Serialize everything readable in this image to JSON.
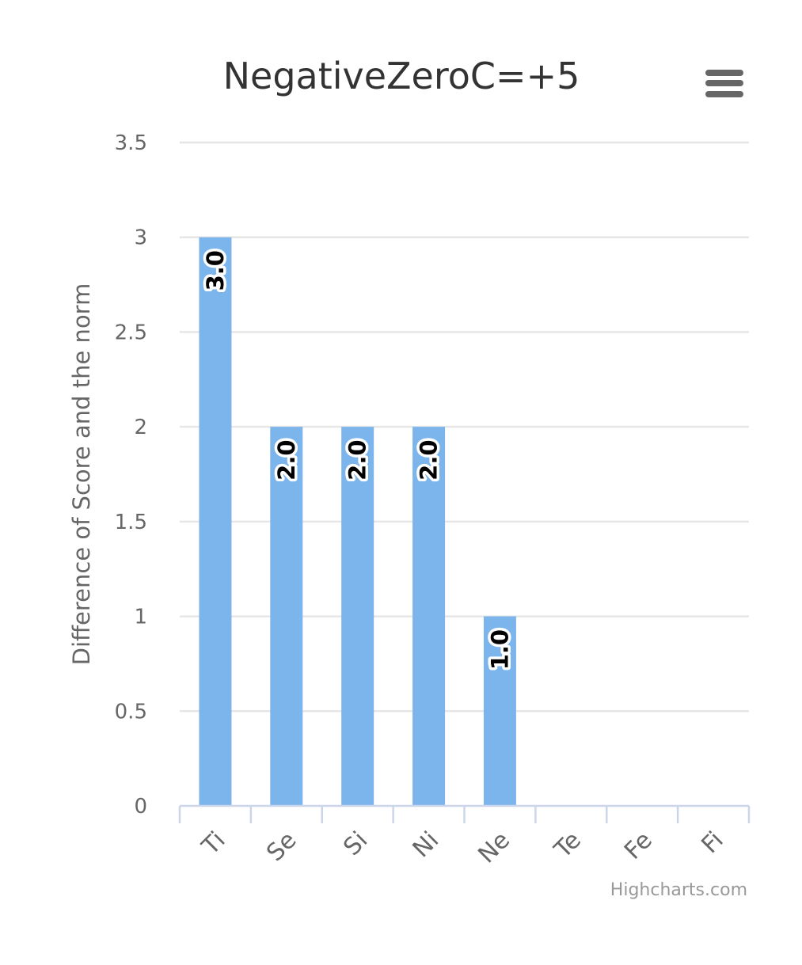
{
  "chart_data": {
    "type": "bar",
    "title": "NegativeZeroC=+5",
    "ylabel": "Difference of Score and the norm",
    "xlabel": "",
    "categories": [
      "Ti",
      "Se",
      "Si",
      "Ni",
      "Ne",
      "Te",
      "Fe",
      "Fi"
    ],
    "values": [
      3,
      2,
      2,
      2,
      1,
      0,
      0,
      0
    ],
    "data_labels": [
      "3.0",
      "2.0",
      "2.0",
      "2.0",
      "1.0",
      "",
      "",
      ""
    ],
    "ylim": [
      0,
      3.5
    ],
    "yticks": [
      0,
      0.5,
      1,
      1.5,
      2,
      2.5,
      3,
      3.5
    ],
    "ytick_labels": [
      "0",
      "0.5",
      "1",
      "1.5",
      "2",
      "2.5",
      "3",
      "3.5"
    ],
    "grid": true,
    "legend": "none",
    "bar_color": "#7cb5ec"
  },
  "menu": {
    "icon": "hamburger-menu-icon"
  },
  "credits": {
    "text": "Highcharts.com"
  }
}
